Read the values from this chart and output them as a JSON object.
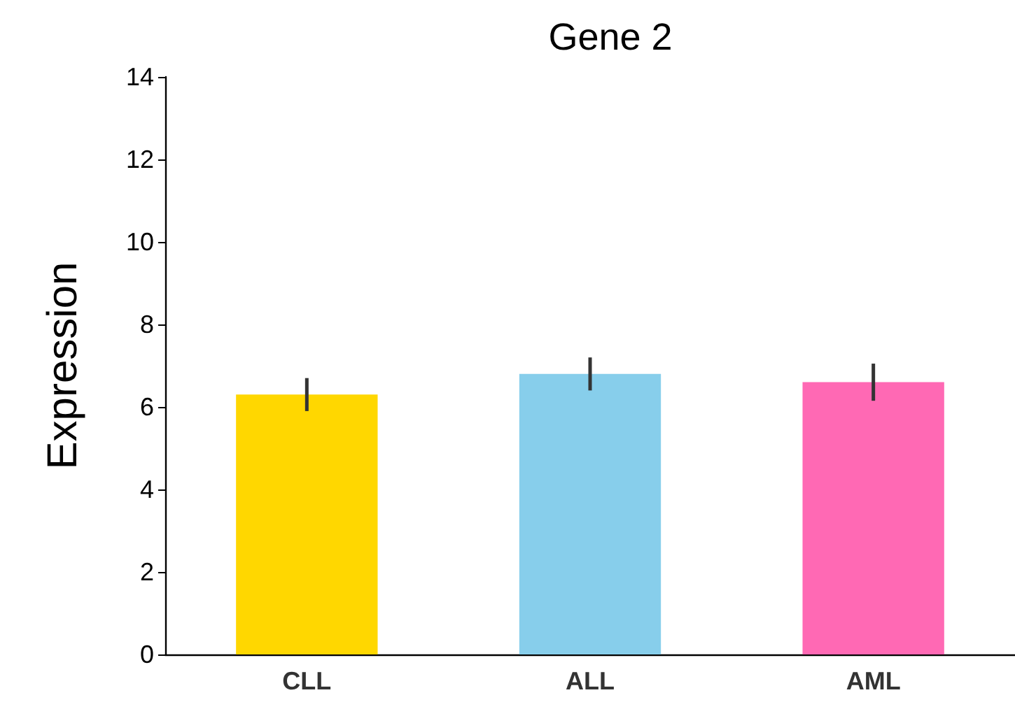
{
  "chart_data": {
    "type": "bar",
    "title": "Gene 2",
    "ylabel": "Expression",
    "categories": [
      "CLL",
      "ALL",
      "AML"
    ],
    "values": [
      6.3,
      6.8,
      6.6
    ],
    "errors": [
      0.4,
      0.4,
      0.45
    ],
    "colors": [
      "#ffd700",
      "#87ceeb",
      "#ff69b4"
    ],
    "ylim": [
      0,
      14
    ],
    "yticks": [
      0,
      2,
      4,
      6,
      8,
      10,
      12,
      14
    ],
    "grid": false
  }
}
